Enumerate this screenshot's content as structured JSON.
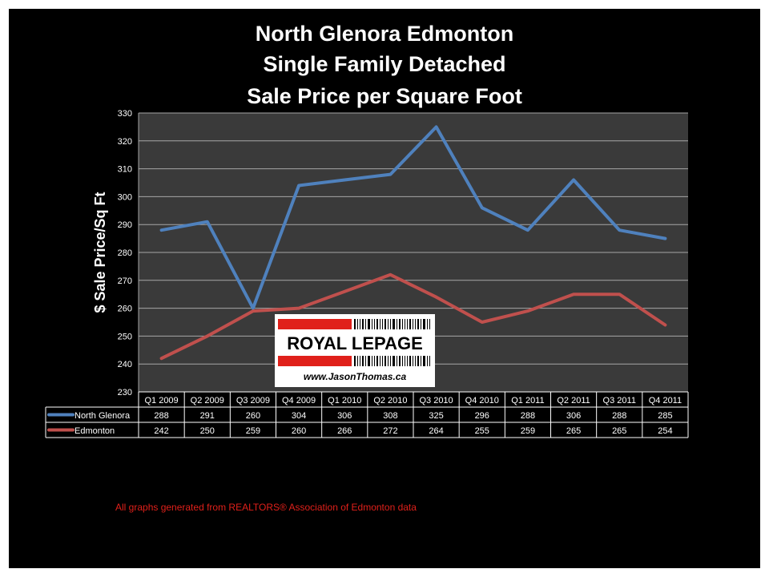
{
  "slide": {
    "background": "#000000",
    "title_lines": [
      "North Glenora Edmonton",
      "Single Family Detached",
      "Sale Price per Square Foot"
    ],
    "footer_note": "All graphs generated from REALTORS® Association of Edmonton data"
  },
  "logo": {
    "brand": "ROYAL LEPAGE",
    "website": "www.JasonThomas.ca",
    "brand_color": "#e0201a"
  },
  "chart_data": {
    "type": "line",
    "title": "North Glenora Edmonton Single Family Detached Sale Price per Square Foot",
    "ylabel": "$ Sale Price/Sq Ft",
    "xlabel": "",
    "categories": [
      "Q1 2009",
      "Q2 2009",
      "Q3 2009",
      "Q4 2009",
      "Q1 2010",
      "Q2 2010",
      "Q3 2010",
      "Q4 2010",
      "Q1 2011",
      "Q2 2011",
      "Q3 2011",
      "Q4 2011"
    ],
    "series": [
      {
        "name": "North Glenora",
        "color": "#4f81bd",
        "values": [
          288,
          291,
          260,
          304,
          306,
          308,
          325,
          296,
          288,
          306,
          288,
          285
        ]
      },
      {
        "name": "Edmonton",
        "color": "#c0504d",
        "values": [
          242,
          250,
          259,
          260,
          266,
          272,
          264,
          255,
          259,
          265,
          265,
          254
        ]
      }
    ],
    "ylim": [
      230,
      330
    ],
    "yticks": [
      230,
      240,
      250,
      260,
      270,
      280,
      290,
      300,
      310,
      320,
      330
    ],
    "grid": true,
    "plot_background": "#3a3a3a",
    "legend": "data-table"
  }
}
